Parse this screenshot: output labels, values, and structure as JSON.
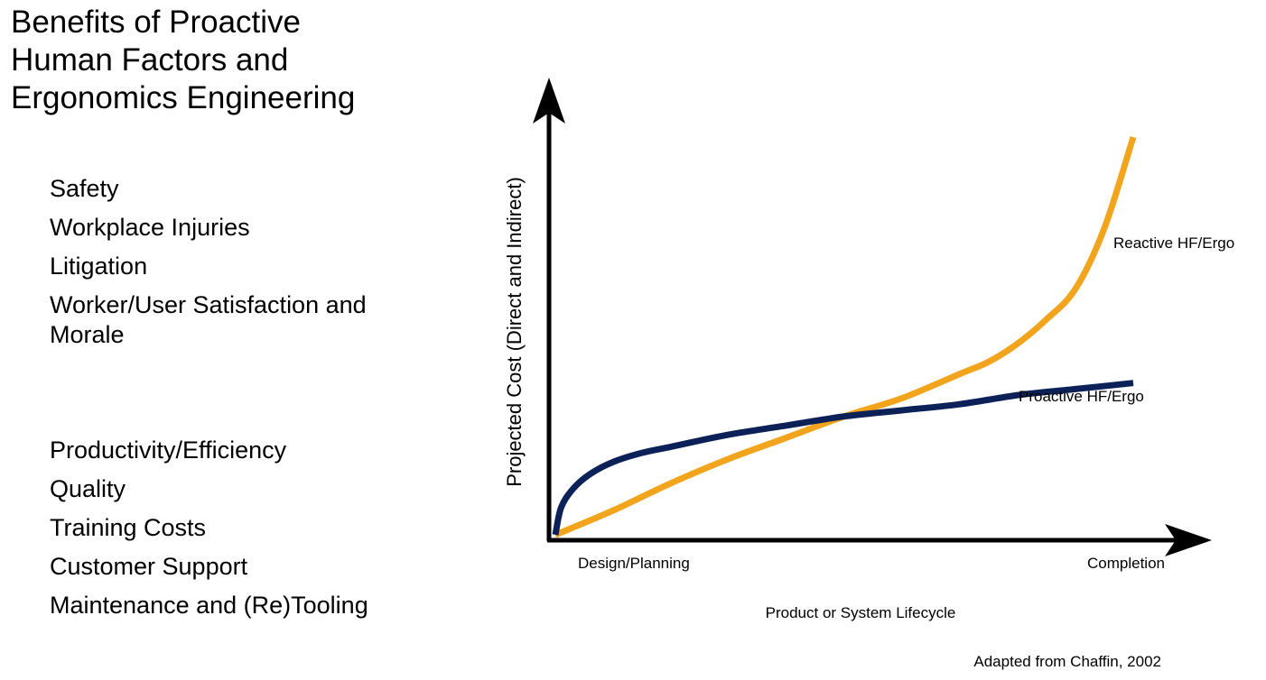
{
  "title_lines": [
    "Benefits of Proactive",
    "Human Factors and",
    "Ergonomics Engineering"
  ],
  "benefits_group_1": [
    "Safety",
    "Workplace Injuries",
    "Litigation",
    "Worker/User Satisfaction and Morale"
  ],
  "benefits_group_2": [
    "Productivity/Efficiency",
    "Quality",
    "Training Costs",
    "Customer Support",
    "Maintenance and (Re)Tooling"
  ],
  "credit": "Adapted from Chaffin, 2002",
  "chart_data": {
    "type": "line",
    "xlabel": "Product or System Lifecycle",
    "ylabel": "Projected Cost (Direct and Indirect)",
    "x_tick_labels": [
      "Design/Planning",
      "Completion"
    ],
    "xlim": [
      0,
      1
    ],
    "ylim": [
      0,
      1
    ],
    "grid": false,
    "legend": "direct labels",
    "series": [
      {
        "name": "Proactive HF/Ergo",
        "color": "#0d2159",
        "x": [
          0,
          0.01,
          0.03,
          0.06,
          0.1,
          0.15,
          0.2,
          0.3,
          0.4,
          0.5,
          0.6,
          0.7,
          0.8,
          0.9,
          1.0
        ],
        "y": [
          0,
          0.09,
          0.15,
          0.2,
          0.24,
          0.27,
          0.29,
          0.33,
          0.36,
          0.39,
          0.41,
          0.43,
          0.46,
          0.48,
          0.5
        ]
      },
      {
        "name": "Reactive HF/Ergo",
        "color": "#f2a51c",
        "x": [
          0,
          0.1,
          0.2,
          0.3,
          0.4,
          0.5,
          0.6,
          0.7,
          0.75,
          0.8,
          0.85,
          0.9,
          0.95,
          1.0
        ],
        "y": [
          0,
          0.08,
          0.17,
          0.25,
          0.32,
          0.39,
          0.45,
          0.53,
          0.57,
          0.63,
          0.71,
          0.81,
          1.01,
          1.31
        ]
      }
    ]
  }
}
